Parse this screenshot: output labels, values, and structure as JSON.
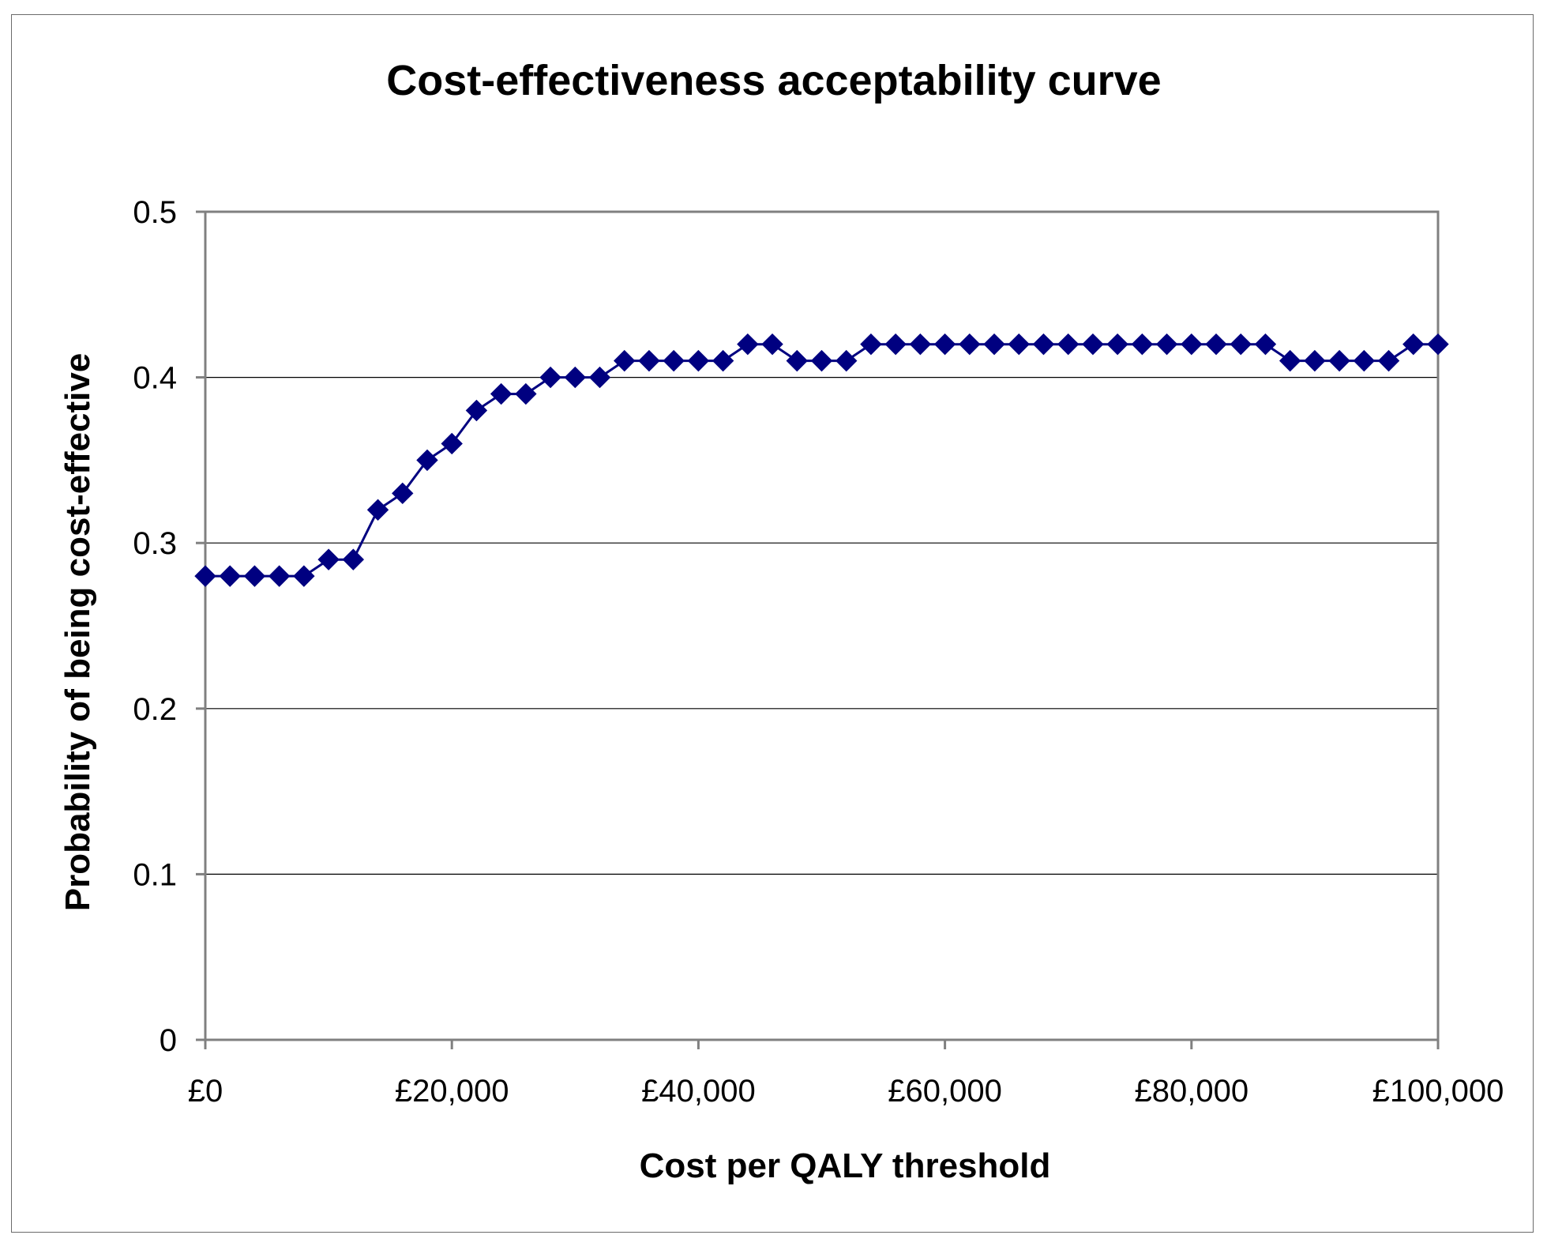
{
  "chart_data": {
    "type": "line",
    "title": "Cost-effectiveness acceptability curve",
    "xlabel": "Cost per QALY threshold",
    "ylabel": "Probability of being cost-effective",
    "xlim": [
      0,
      100000
    ],
    "ylim": [
      0,
      0.5
    ],
    "x_ticks": [
      0,
      20000,
      40000,
      60000,
      80000,
      100000
    ],
    "x_tick_labels": [
      "£0",
      "£20,000",
      "£40,000",
      "£60,000",
      "£80,000",
      "£100,000"
    ],
    "y_ticks": [
      0,
      0.1,
      0.2,
      0.3,
      0.4,
      0.5
    ],
    "y_tick_labels": [
      "0",
      "0.1",
      "0.2",
      "0.3",
      "0.4",
      "0.5"
    ],
    "grid": "horizontal",
    "series": [
      {
        "name": "Probability of being cost-effective",
        "color": "#000080",
        "marker": "diamond",
        "x": [
          0,
          2000,
          4000,
          6000,
          8000,
          10000,
          12000,
          14000,
          16000,
          18000,
          20000,
          22000,
          24000,
          26000,
          28000,
          30000,
          32000,
          34000,
          36000,
          38000,
          40000,
          42000,
          44000,
          46000,
          48000,
          50000,
          52000,
          54000,
          56000,
          58000,
          60000,
          62000,
          64000,
          66000,
          68000,
          70000,
          72000,
          74000,
          76000,
          78000,
          80000,
          82000,
          84000,
          86000,
          88000,
          90000,
          92000,
          94000,
          96000,
          98000,
          100000
        ],
        "values": [
          0.28,
          0.28,
          0.28,
          0.28,
          0.28,
          0.29,
          0.29,
          0.32,
          0.33,
          0.35,
          0.36,
          0.38,
          0.39,
          0.39,
          0.4,
          0.4,
          0.4,
          0.41,
          0.41,
          0.41,
          0.41,
          0.41,
          0.42,
          0.42,
          0.41,
          0.41,
          0.41,
          0.42,
          0.42,
          0.42,
          0.42,
          0.42,
          0.42,
          0.42,
          0.42,
          0.42,
          0.42,
          0.42,
          0.42,
          0.42,
          0.42,
          0.42,
          0.42,
          0.42,
          0.41,
          0.41,
          0.41,
          0.41,
          0.41,
          0.42,
          0.42
        ]
      }
    ]
  }
}
